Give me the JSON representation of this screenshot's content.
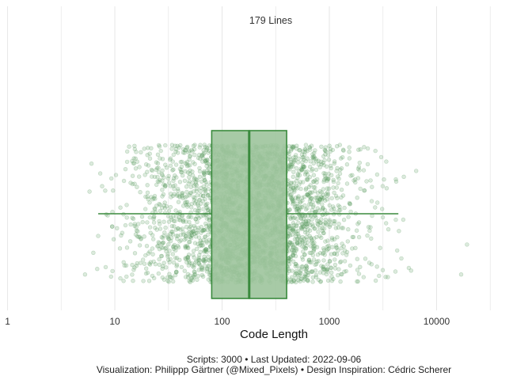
{
  "chart_data": {
    "type": "boxplot",
    "title": "",
    "xlabel": "Code Length",
    "ylabel": "",
    "x_scale": "log10",
    "xlim": [
      0.85,
      45000
    ],
    "x_ticks": [
      1,
      10,
      100,
      1000,
      10000
    ],
    "x_tick_labels": [
      "1",
      "10",
      "100",
      "1000",
      "10000"
    ],
    "minor_gridlines": [
      3.16,
      31.6,
      316,
      3162,
      31623
    ],
    "grid": "vertical",
    "annotation": "179 Lines",
    "box": {
      "whisker_low": 7,
      "q1": 80,
      "median": 179,
      "q3": 400,
      "whisker_high": 4400
    },
    "points": {
      "count": 3000,
      "description": "jittered individual scripts"
    },
    "colors": {
      "box_fill": "#9dc49c",
      "box_stroke": "#3a8a3d",
      "points": "#5e9e63",
      "grid": "#e6e6e6"
    }
  },
  "caption": {
    "line1": "Scripts: 3000 • Last Updated: 2022-09-06",
    "line2": "Visualization: Philippp Gärtner (@Mixed_Pixels) • Design Inspiration: Cédric Scherer"
  }
}
